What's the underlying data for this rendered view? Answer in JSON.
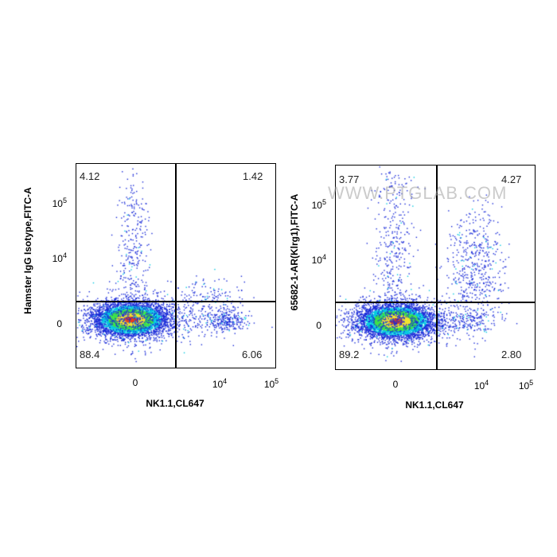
{
  "chart_data": [
    {
      "type": "scatter",
      "subtype": "flow-cytometry-density-dot-plot",
      "title": "",
      "xlabel": "NK1.1,CL647",
      "ylabel": "Hamster IgG Isotype,FITC-A",
      "x_scale": "biexponential",
      "y_scale": "biexponential",
      "x_tick_labels": [
        "0",
        "10^4",
        "10^5"
      ],
      "y_tick_labels": [
        "0",
        "10^4",
        "10^5"
      ],
      "quadrants": {
        "upper_left": "4.12",
        "upper_right": "1.42",
        "lower_left": "88.4",
        "lower_right": "6.06"
      },
      "watermark": ""
    },
    {
      "type": "scatter",
      "subtype": "flow-cytometry-density-dot-plot",
      "title": "",
      "xlabel": "NK1.1,CL647",
      "ylabel": "65682-1-AR(Klrg1),FITC-A",
      "x_scale": "biexponential",
      "y_scale": "biexponential",
      "x_tick_labels": [
        "0",
        "10^4",
        "10^5"
      ],
      "y_tick_labels": [
        "0",
        "10^4",
        "10^5"
      ],
      "quadrants": {
        "upper_left": "3.77",
        "upper_right": "4.27",
        "lower_left": "89.2",
        "lower_right": "2.80"
      },
      "watermark": "WWW.PTGLAB.COM"
    }
  ],
  "colors": {
    "density_low": "#1a2bd8",
    "density_mid1": "#00c8e0",
    "density_mid2": "#3ee04a",
    "density_mid3": "#f4e430",
    "density_high": "#e8401c",
    "gate_line": "#000000"
  }
}
